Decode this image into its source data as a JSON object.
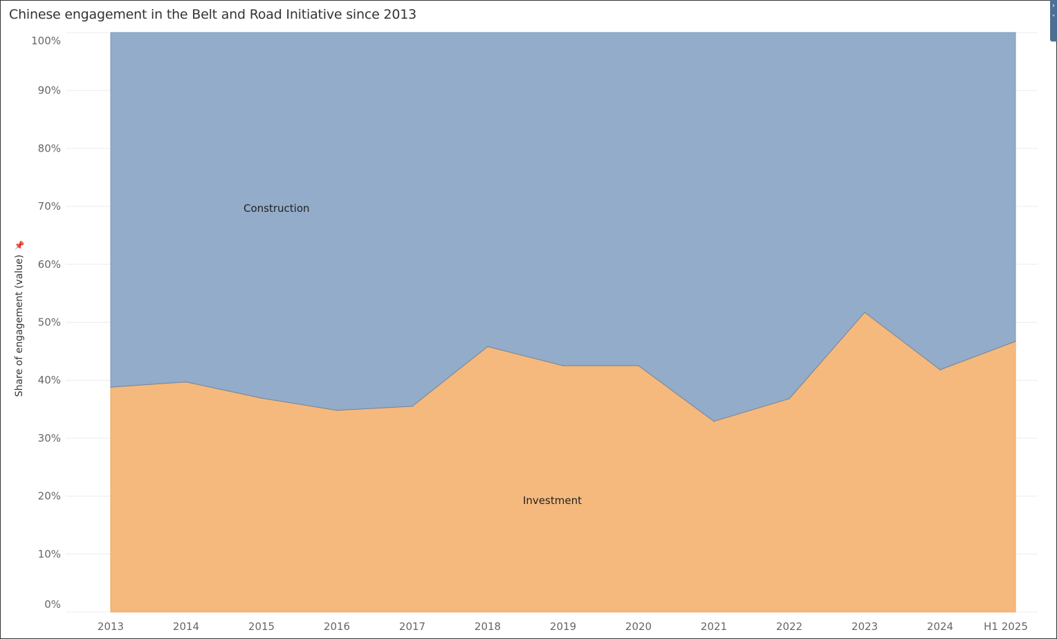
{
  "title": "Chinese engagement in the Belt and Road Initiative since 2013",
  "chart_data": {
    "type": "area",
    "stacked": "percent",
    "title": "Chinese engagement in the Belt and Road Initiative since 2013",
    "xlabel": "",
    "ylabel": "Share of engagement (value)",
    "categories": [
      "2013",
      "2014",
      "2015",
      "2016",
      "2017",
      "2018",
      "2019",
      "2020",
      "2021",
      "2022",
      "2023",
      "2024",
      "H1 2025"
    ],
    "ylim": [
      0,
      100
    ],
    "yticks": [
      "0%",
      "10%",
      "20%",
      "30%",
      "40%",
      "50%",
      "60%",
      "70%",
      "80%",
      "90%",
      "100%"
    ],
    "grid": true,
    "series": [
      {
        "name": "Investment",
        "color": "#f5b97d",
        "values": [
          38.8,
          39.7,
          36.9,
          34.8,
          35.5,
          45.8,
          42.5,
          42.5,
          32.9,
          36.8,
          51.7,
          41.8,
          46.7
        ]
      },
      {
        "name": "Construction",
        "color": "#92acc9",
        "values": [
          61.2,
          60.3,
          63.1,
          65.2,
          64.5,
          54.2,
          57.5,
          57.5,
          67.1,
          63.2,
          48.3,
          58.2,
          53.3
        ]
      }
    ]
  }
}
